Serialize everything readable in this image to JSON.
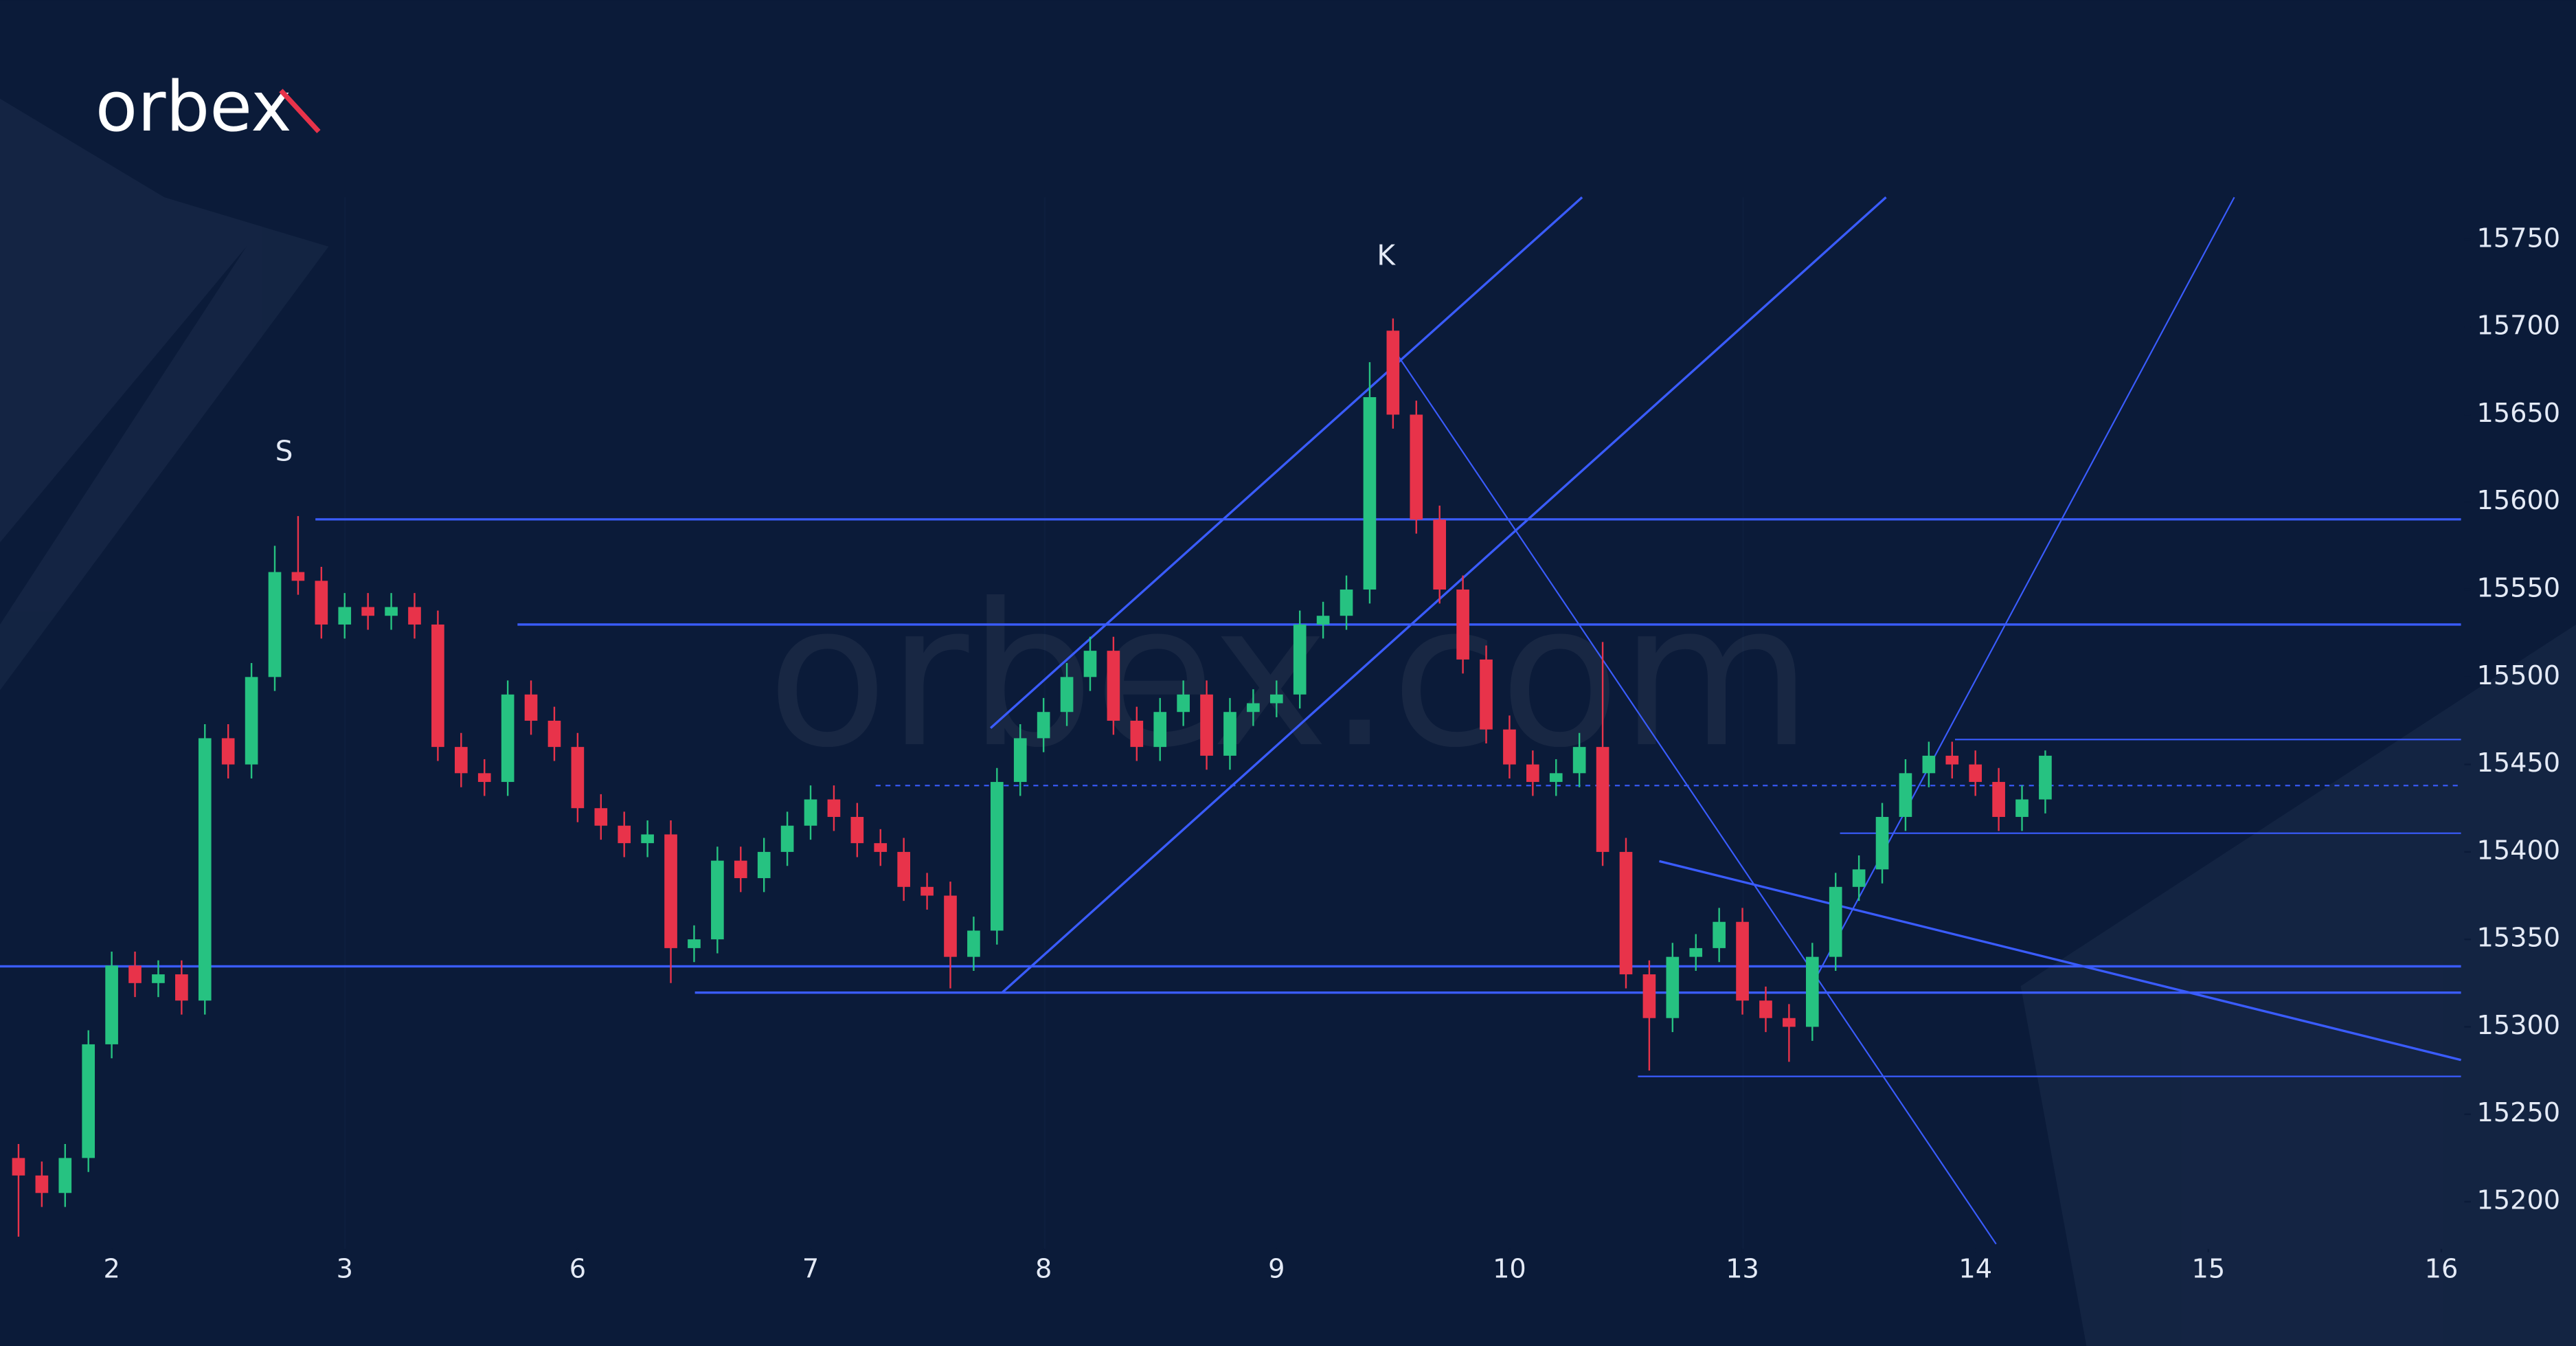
{
  "logo": "orbex",
  "watermark": "orbex.com",
  "chart_data": {
    "type": "candlestick",
    "annotations": [
      "S",
      "K"
    ],
    "xlim": [
      -0.4795,
      10.0985
    ],
    "xticks": [
      {
        "value": 0,
        "label": "2"
      },
      {
        "value": 1,
        "label": "3"
      },
      {
        "value": 2,
        "label": "6"
      },
      {
        "value": 3,
        "label": "7"
      },
      {
        "value": 4,
        "label": "8"
      },
      {
        "value": 5,
        "label": "9"
      },
      {
        "value": 6,
        "label": "10"
      },
      {
        "value": 7,
        "label": "13"
      },
      {
        "value": 8,
        "label": "14"
      },
      {
        "value": 9,
        "label": "15"
      },
      {
        "value": 10,
        "label": "16"
      }
    ],
    "ylim": [
      15173,
      15887
    ],
    "yticks": [
      15200,
      15250,
      15300,
      15350,
      15400,
      15450,
      15500,
      15550,
      15600,
      15650,
      15700,
      15750
    ],
    "up_color": "#26c281",
    "down_color": "#e8334a",
    "x": [
      -0.4,
      -0.3,
      -0.2,
      -0.1,
      0,
      0.1,
      0.2,
      0.3,
      0.4,
      0.5,
      0.6,
      0.7,
      0.8,
      0.9,
      1,
      1.1,
      1.2,
      1.3,
      1.4,
      1.5,
      1.6,
      1.7,
      1.8,
      1.9,
      2,
      2.1,
      2.2,
      2.3,
      2.4,
      2.5,
      2.6,
      2.7,
      2.8,
      2.9,
      3,
      3.1,
      3.2,
      3.3,
      3.4,
      3.5,
      3.6,
      3.7,
      3.8,
      3.9,
      4,
      4.1,
      4.2,
      4.3,
      4.4,
      4.5,
      4.6,
      4.7,
      4.8,
      4.9,
      5,
      5.1,
      5.2,
      5.3,
      5.4,
      5.5,
      5.6,
      5.7,
      5.8,
      5.9,
      6,
      6.1,
      6.2,
      6.3,
      6.4,
      6.5,
      6.6,
      6.7,
      6.8,
      6.9,
      7,
      7.1,
      7.2,
      7.3,
      7.4,
      7.5,
      7.6,
      7.7,
      7.8,
      7.9,
      8,
      8.1,
      8.2,
      8.3
    ],
    "open": [
      15225,
      15215,
      15205,
      15225,
      15290,
      15335,
      15325,
      15330,
      15315,
      15465,
      15450,
      15500,
      15560,
      15555,
      15530,
      15540,
      15535,
      15540,
      15530,
      15460,
      15445,
      15440,
      15490,
      15475,
      15460,
      15425,
      15415,
      15405,
      15410,
      15345,
      15350,
      15395,
      15385,
      15400,
      15415,
      15430,
      15420,
      15405,
      15400,
      15380,
      15375,
      15340,
      15355,
      15440,
      15465,
      15480,
      15500,
      15515,
      15475,
      15460,
      15480,
      15490,
      15455,
      15480,
      15485,
      15490,
      15530,
      15535,
      15550,
      15698,
      15650,
      15590,
      15550,
      15510,
      15470,
      15450,
      15440,
      15445,
      15460,
      15400,
      15330,
      15305,
      15340,
      15345,
      15360,
      15315,
      15305,
      15300,
      15340,
      15380,
      15390,
      15420,
      15445,
      15455,
      15450,
      15440,
      15420,
      15430
    ],
    "high": [
      15233,
      15223,
      15233,
      15298,
      15343,
      15343,
      15338,
      15338,
      15473,
      15473,
      15508,
      15575,
      15592,
      15563,
      15548,
      15548,
      15548,
      15548,
      15538,
      15468,
      15453,
      15498,
      15498,
      15483,
      15468,
      15433,
      15423,
      15418,
      15418,
      15358,
      15403,
      15403,
      15408,
      15423,
      15438,
      15438,
      15428,
      15413,
      15408,
      15388,
      15383,
      15363,
      15448,
      15473,
      15488,
      15508,
      15523,
      15523,
      15483,
      15488,
      15498,
      15498,
      15488,
      15493,
      15498,
      15538,
      15543,
      15558,
      15680,
      15705,
      15658,
      15598,
      15558,
      15518,
      15478,
      15458,
      15453,
      15468,
      15520,
      15408,
      15338,
      15348,
      15353,
      15368,
      15368,
      15323,
      15313,
      15348,
      15388,
      15398,
      15428,
      15453,
      15463,
      15463,
      15458,
      15448,
      15438,
      15458
    ],
    "low": [
      15180,
      15197,
      15197,
      15217,
      15282,
      15317,
      15317,
      15307,
      15307,
      15442,
      15442,
      15492,
      15547,
      15522,
      15522,
      15527,
      15527,
      15522,
      15452,
      15437,
      15432,
      15432,
      15467,
      15452,
      15417,
      15407,
      15397,
      15397,
      15325,
      15337,
      15342,
      15377,
      15377,
      15392,
      15407,
      15412,
      15397,
      15392,
      15372,
      15367,
      15322,
      15332,
      15347,
      15432,
      15457,
      15472,
      15492,
      15467,
      15452,
      15452,
      15472,
      15447,
      15447,
      15472,
      15477,
      15482,
      15522,
      15527,
      15542,
      15642,
      15582,
      15542,
      15502,
      15462,
      15442,
      15432,
      15432,
      15437,
      15392,
      15322,
      15275,
      15297,
      15332,
      15337,
      15307,
      15297,
      15280,
      15292,
      15332,
      15372,
      15382,
      15412,
      15437,
      15442,
      15432,
      15412,
      15412,
      15422
    ],
    "close": [
      15215,
      15205,
      15225,
      15290,
      15335,
      15325,
      15330,
      15315,
      15465,
      15450,
      15500,
      15560,
      15555,
      15530,
      15540,
      15535,
      15540,
      15530,
      15460,
      15445,
      15440,
      15490,
      15475,
      15460,
      15425,
      15415,
      15405,
      15410,
      15345,
      15350,
      15395,
      15385,
      15400,
      15415,
      15430,
      15420,
      15405,
      15400,
      15380,
      15375,
      15340,
      15355,
      15440,
      15465,
      15480,
      15500,
      15515,
      15475,
      15460,
      15480,
      15490,
      15455,
      15480,
      15485,
      15490,
      15530,
      15535,
      15550,
      15660,
      15650,
      15590,
      15550,
      15510,
      15470,
      15450,
      15440,
      15445,
      15460,
      15400,
      15330,
      15305,
      15340,
      15345,
      15360,
      15315,
      15305,
      15300,
      15340,
      15380,
      15390,
      15420,
      15445,
      15455,
      15450,
      15440,
      15420,
      15430,
      15455
    ]
  }
}
